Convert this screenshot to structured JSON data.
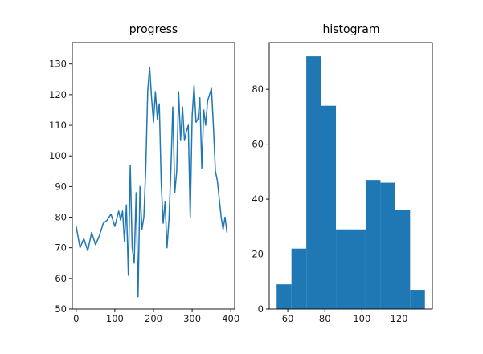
{
  "chart_data": [
    {
      "type": "line",
      "title": "progress",
      "xlabel": "",
      "ylabel": "",
      "xlim": [
        -10,
        410
      ],
      "ylim": [
        50,
        137
      ],
      "xticks": [
        0,
        100,
        200,
        300,
        400
      ],
      "yticks": [
        50,
        60,
        70,
        80,
        90,
        100,
        110,
        120,
        130
      ],
      "grid": false,
      "color": "#1f77b4",
      "x": [
        0,
        10,
        20,
        30,
        40,
        50,
        60,
        70,
        80,
        90,
        100,
        110,
        115,
        120,
        125,
        130,
        135,
        140,
        145,
        150,
        155,
        160,
        165,
        170,
        175,
        180,
        185,
        190,
        195,
        200,
        205,
        210,
        215,
        220,
        225,
        230,
        235,
        240,
        245,
        250,
        255,
        260,
        265,
        270,
        275,
        280,
        285,
        290,
        295,
        300,
        305,
        310,
        315,
        320,
        325,
        330,
        335,
        340,
        345,
        350,
        355,
        360,
        365,
        370,
        375,
        380,
        385,
        390
      ],
      "y": [
        77,
        70,
        73,
        69,
        75,
        71,
        74,
        78,
        79,
        81,
        77,
        82,
        79,
        82,
        72,
        84,
        61,
        97,
        70,
        65,
        88,
        54,
        90,
        76,
        80,
        96,
        121,
        129,
        119,
        111,
        121,
        112,
        117,
        91,
        78,
        85,
        70,
        79,
        95,
        116,
        88,
        95,
        121,
        105,
        116,
        105,
        108,
        110,
        80,
        113,
        123,
        111,
        112,
        119,
        96,
        115,
        110,
        118,
        120,
        122,
        110,
        95,
        92,
        86,
        80,
        76,
        80,
        75
      ]
    },
    {
      "type": "bar",
      "title": "histogram",
      "xlabel": "",
      "ylabel": "",
      "xlim": [
        50,
        138
      ],
      "ylim": [
        0,
        97
      ],
      "xticks": [
        60,
        80,
        100,
        120
      ],
      "yticks": [
        0,
        20,
        40,
        60,
        80
      ],
      "grid": false,
      "color": "#1f77b4",
      "bin_edges": [
        54,
        62,
        70,
        78,
        86,
        94,
        102,
        110,
        118,
        126,
        134
      ],
      "counts": [
        9,
        22,
        92,
        74,
        29,
        29,
        47,
        46,
        36,
        7
      ]
    }
  ]
}
